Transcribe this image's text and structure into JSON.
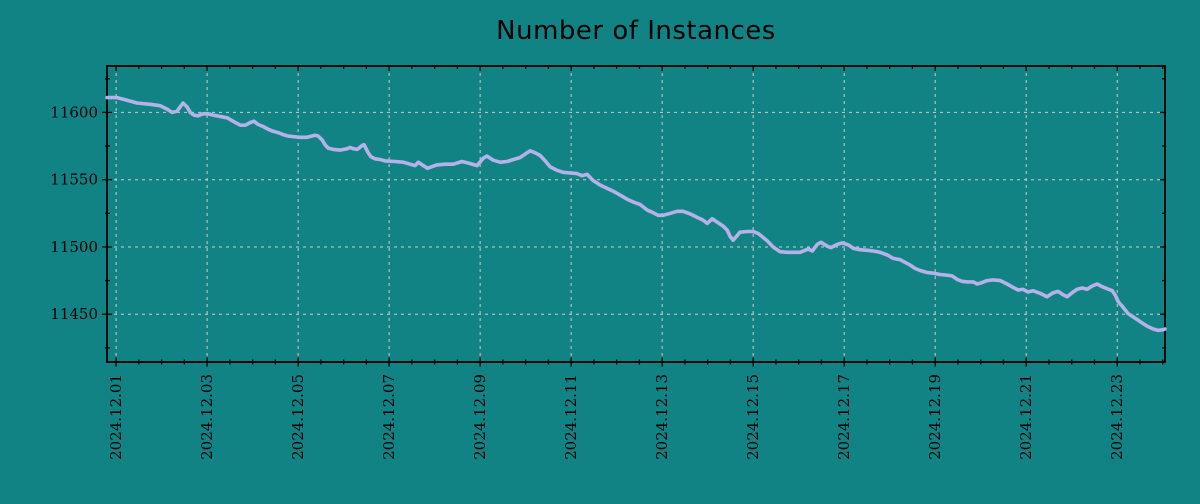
{
  "chart_data": {
    "type": "line",
    "title": "Number of Instances",
    "xlabel": "",
    "ylabel": "",
    "legend": "none",
    "grid": "dashed gridlines at major ticks, both axes",
    "x_unit": "date (December 2024, fractional days)",
    "x_range_days": [
      0.8,
      24.05
    ],
    "y_range": [
      11414.5,
      11634.5
    ],
    "x_tick_days": [
      1,
      3,
      5,
      7,
      9,
      11,
      13,
      15,
      17,
      19,
      21,
      23
    ],
    "x_tick_labels": [
      "2024.12.01",
      "2024.12.03",
      "2024.12.05",
      "2024.12.07",
      "2024.12.09",
      "2024.12.11",
      "2024.12.13",
      "2024.12.15",
      "2024.12.17",
      "2024.12.19",
      "2024.12.21",
      "2024.12.23"
    ],
    "x_minor_step_days": 0.5,
    "y_major_ticks": [
      11450,
      11500,
      11550,
      11600
    ],
    "y_tick_labels": [
      "11450",
      "11500",
      "11550",
      "11600"
    ],
    "y_minor_ticks": [
      11425,
      11475,
      11525,
      11575,
      11625
    ],
    "x": [
      0.8,
      1.02,
      1.24,
      1.46,
      1.75,
      1.97,
      2.12,
      2.23,
      2.34,
      2.47,
      2.56,
      2.63,
      2.71,
      2.8,
      2.91,
      3.02,
      3.13,
      3.29,
      3.44,
      3.57,
      3.73,
      3.84,
      3.95,
      4.03,
      4.12,
      4.23,
      4.34,
      4.45,
      4.56,
      4.67,
      4.78,
      4.89,
      5.04,
      5.2,
      5.37,
      5.44,
      5.53,
      5.59,
      5.66,
      5.77,
      5.92,
      6.08,
      6.14,
      6.21,
      6.3,
      6.41,
      6.45,
      6.54,
      6.6,
      6.69,
      6.8,
      6.91,
      7.13,
      7.31,
      7.46,
      7.57,
      7.64,
      7.75,
      7.84,
      7.97,
      8.05,
      8.23,
      8.41,
      8.6,
      8.78,
      8.93,
      9.07,
      9.15,
      9.29,
      9.44,
      9.59,
      9.73,
      9.88,
      10.03,
      10.1,
      10.21,
      10.32,
      10.43,
      10.54,
      10.69,
      10.82,
      10.98,
      11.13,
      11.24,
      11.35,
      11.48,
      11.64,
      11.79,
      11.92,
      12.08,
      12.23,
      12.36,
      12.52,
      12.67,
      12.8,
      12.91,
      13.02,
      13.18,
      13.33,
      13.46,
      13.62,
      13.77,
      13.9,
      13.99,
      14.1,
      14.21,
      14.34,
      14.43,
      14.49,
      14.56,
      14.65,
      14.71,
      14.87,
      15.0,
      15.11,
      15.22,
      15.31,
      15.44,
      15.59,
      15.75,
      15.88,
      16.03,
      16.14,
      16.21,
      16.3,
      16.41,
      16.49,
      16.63,
      16.71,
      16.85,
      16.96,
      17.09,
      17.2,
      17.35,
      17.51,
      17.64,
      17.79,
      17.95,
      18.08,
      18.23,
      18.34,
      18.45,
      18.56,
      18.67,
      18.82,
      18.96,
      19.11,
      19.26,
      19.37,
      19.48,
      19.59,
      19.7,
      19.84,
      19.92,
      20.03,
      20.14,
      20.27,
      20.43,
      20.58,
      20.71,
      20.82,
      20.93,
      21.04,
      21.15,
      21.31,
      21.46,
      21.59,
      21.7,
      21.81,
      21.9,
      22.03,
      22.12,
      22.23,
      22.34,
      22.45,
      22.56,
      22.67,
      22.78,
      22.89,
      22.96,
      23.02,
      23.11,
      23.18,
      23.24,
      23.33,
      23.44,
      23.55,
      23.66,
      23.79,
      23.9,
      24.01,
      24.05
    ],
    "y": [
      11611,
      11611,
      11609,
      11607,
      11606,
      11605,
      11602.5,
      11600,
      11601,
      11607,
      11604,
      11600,
      11598,
      11597.5,
      11599,
      11599,
      11598,
      11597,
      11596,
      11593.5,
      11590.5,
      11590.5,
      11592.5,
      11593.5,
      11591,
      11589.5,
      11587.5,
      11586,
      11585,
      11583.5,
      11582.5,
      11582,
      11581.5,
      11581.5,
      11583,
      11582.5,
      11579.5,
      11576,
      11573.5,
      11572.5,
      11572,
      11573,
      11574,
      11573,
      11572.5,
      11575.5,
      11576,
      11570,
      11567,
      11565.5,
      11565,
      11564,
      11563.5,
      11563,
      11561.5,
      11560.5,
      11563,
      11560.5,
      11558.5,
      11560,
      11561,
      11561.5,
      11561.5,
      11563.5,
      11562,
      11560.5,
      11566,
      11567.5,
      11564.5,
      11563,
      11563.5,
      11565,
      11566.5,
      11570,
      11571.5,
      11570,
      11568,
      11564,
      11559.5,
      11557,
      11555.5,
      11555,
      11554.5,
      11553,
      11554,
      11549.5,
      11546,
      11543.5,
      11541.5,
      11538.5,
      11535.5,
      11533.5,
      11531.5,
      11527.5,
      11525.5,
      11523.5,
      11523.5,
      11525,
      11526.5,
      11526.5,
      11524.5,
      11522,
      11520,
      11517.5,
      11521,
      11518.5,
      11515.5,
      11512.5,
      11508,
      11505,
      11508.5,
      11511,
      11511.5,
      11511.5,
      11510,
      11507,
      11504.5,
      11500,
      11496.5,
      11496,
      11496,
      11496,
      11497.5,
      11498.5,
      11497,
      11502,
      11503.5,
      11500.5,
      11499.5,
      11502,
      11503,
      11501.5,
      11499,
      11498,
      11497.5,
      11497,
      11496,
      11494,
      11491.5,
      11490.5,
      11488.5,
      11486.5,
      11484,
      11482.5,
      11481,
      11480.5,
      11479.5,
      11479,
      11478.5,
      11476,
      11474.5,
      11474,
      11474,
      11472.5,
      11473.5,
      11475,
      11475.5,
      11475,
      11472.5,
      11470,
      11468,
      11468.5,
      11466.5,
      11467.5,
      11465.5,
      11463,
      11466,
      11467,
      11464.5,
      11463,
      11466.5,
      11468.5,
      11469.5,
      11468.5,
      11471,
      11472.5,
      11470.5,
      11469,
      11467.5,
      11464,
      11459.5,
      11456,
      11453,
      11450.5,
      11448.5,
      11446,
      11443.5,
      11441,
      11439,
      11438,
      11438.5,
      11439
    ]
  },
  "colors": {
    "background": "#118384",
    "line": "#b6b1e8",
    "grid": "#cccccc",
    "axis": "#000000",
    "text": "#000000"
  }
}
